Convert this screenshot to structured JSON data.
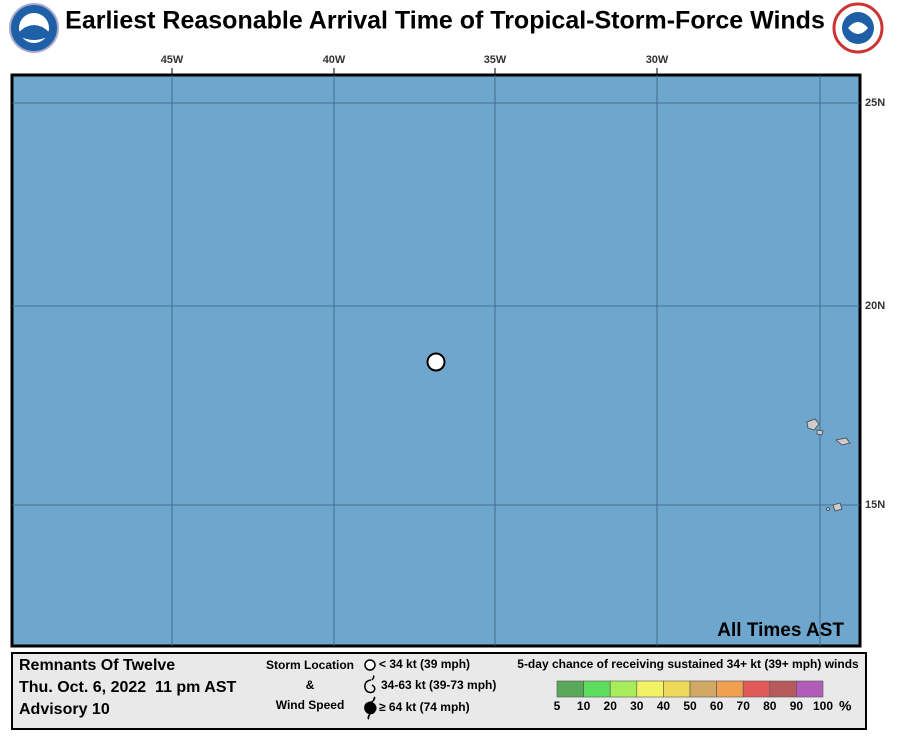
{
  "header": {
    "title": "Earliest Reasonable Arrival Time of Tropical-Storm-Force Winds"
  },
  "map": {
    "lon_labels": [
      "45W",
      "40W",
      "35W",
      "30W"
    ],
    "lat_labels": [
      "25N",
      "20N",
      "15N"
    ],
    "time_note": "All Times AST"
  },
  "info": {
    "storm": "Remnants Of Twelve",
    "time": "Thu. Oct. 6, 2022  11 pm AST",
    "advisory": "Advisory 10"
  },
  "storm_legend": {
    "labels": [
      "Storm Location",
      "&",
      "Wind Speed"
    ],
    "items": [
      "< 34 kt (39 mph)",
      "34-63 kt (39-73 mph)",
      "≥ 64 kt (74 mph)"
    ]
  },
  "probability_legend": {
    "title": "5-day chance of receiving sustained 34+ kt (39+ mph) winds",
    "ticks": [
      5,
      10,
      20,
      30,
      40,
      50,
      60,
      70,
      80,
      90,
      100
    ],
    "unit": "%",
    "colors": [
      "#5aa85a",
      "#5ddc5d",
      "#a8ee5c",
      "#f2f264",
      "#efd95a",
      "#d2a866",
      "#f0a050",
      "#e05a5a",
      "#b45a5a",
      "#b05cb8"
    ]
  }
}
